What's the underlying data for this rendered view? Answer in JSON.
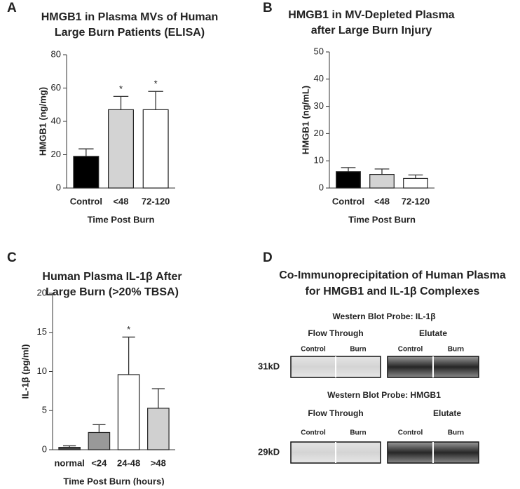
{
  "chart_data": [
    {
      "type": "bar",
      "panel_label": "A",
      "title": [
        "HMGB1 in Plasma MVs of Human",
        "Large Burn Patients (ELISA)"
      ],
      "y_label": "HMGB1 (ng/mg)",
      "x_label": "Time Post Burn",
      "categories": [
        "Control",
        "<48",
        "72-120"
      ],
      "values": [
        19,
        47,
        47
      ],
      "errors": [
        4.5,
        8,
        11
      ],
      "markers": [
        null,
        "*",
        "*"
      ],
      "colors": [
        "#000000",
        "#d3d3d3",
        "#ffffff"
      ],
      "ylim": [
        0,
        80
      ],
      "yticks": [
        0,
        20,
        40,
        60,
        80
      ]
    },
    {
      "type": "bar",
      "panel_label": "B",
      "title": [
        "HMGB1 in MV-Depleted Plasma",
        "after Large Burn Injury"
      ],
      "y_label": "HMGB1 (ng/mL)",
      "x_label": "Time Post Burn",
      "categories": [
        "Control",
        "<48",
        "72-120"
      ],
      "values": [
        6,
        5,
        3.5
      ],
      "errors": [
        1.5,
        2,
        1.3
      ],
      "colors": [
        "#000000",
        "#d3d3d3",
        "#ffffff"
      ],
      "ylim": [
        0,
        50
      ],
      "yticks": [
        0,
        10,
        20,
        30,
        40,
        50
      ]
    },
    {
      "type": "bar",
      "panel_label": "C",
      "title": [
        "Human Plasma IL-1β After",
        "Large Burn (>20%  TBSA)"
      ],
      "y_label": "IL-1β (pg/ml)",
      "x_label": "Time Post Burn (hours)",
      "categories": [
        "normal",
        "<24",
        "24-48",
        ">48"
      ],
      "values": [
        0.3,
        2.2,
        9.6,
        5.3
      ],
      "errors": [
        0.2,
        1,
        4.8,
        2.5
      ],
      "markers": [
        null,
        null,
        "*",
        null
      ],
      "colors": [
        "#444444",
        "#999999",
        "#ffffff",
        "#d0d0d0"
      ],
      "ylim": [
        0,
        20
      ],
      "yticks": [
        0,
        5,
        10,
        15,
        20
      ]
    }
  ],
  "blot_panel": {
    "panel_label": "D",
    "title": [
      "Co-Immunoprecipitation of Human Plasma",
      "for HMGB1 and IL-1β Complexes"
    ],
    "probes": [
      {
        "heading": "Western Blot Probe: IL-1β",
        "groups": [
          "Flow Through",
          "Elutate"
        ],
        "lanes": [
          "Control",
          "Burn",
          "Control",
          "Burn"
        ],
        "size": "31kD"
      },
      {
        "heading": "Western Blot Probe: HMGB1",
        "groups": [
          "Flow Through",
          "Elutate"
        ],
        "lanes": [
          "Control",
          "Burn",
          "Control",
          "Burn"
        ],
        "size": "29kD"
      }
    ]
  }
}
